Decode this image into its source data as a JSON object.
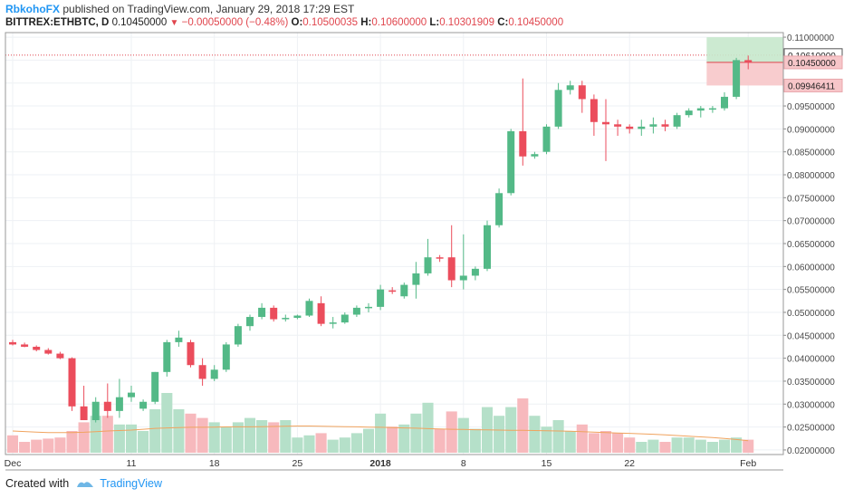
{
  "header": {
    "author": "RbkohoFX",
    "published_text": "published on TradingView.com, January 29, 2018 17:29 EST",
    "symbol": "BITTREX:ETHBTC, D",
    "last": "0.10450000",
    "change": "−0.00050000 (−0.48%)",
    "o_label": "O:",
    "o": "0.10500035",
    "h_label": "H:",
    "h": "0.10600000",
    "l_label": "L:",
    "l": "0.10301909",
    "c_label": "C:",
    "c": "0.10450000"
  },
  "footer": {
    "created_with": "Created with",
    "brand": "TradingView"
  },
  "colors": {
    "up": "#53b987",
    "down": "#eb4d5c",
    "vol_up": "#b5e0c9",
    "vol_down": "#f7b9bd",
    "ma": "#f0a35e",
    "grid": "#eef1f4"
  },
  "chart_data": {
    "type": "candlestick",
    "y_ticks": [
      "0.11000000",
      "0.10500000",
      "0.10000000",
      "0.09500000",
      "0.09000000",
      "0.08500000",
      "0.08000000",
      "0.07500000",
      "0.07000000",
      "0.06500000",
      "0.06000000",
      "0.05500000",
      "0.05000000",
      "0.04500000",
      "0.04000000",
      "0.03500000",
      "0.03000000",
      "0.02500000",
      "0.02000000"
    ],
    "ylim": [
      0.019,
      0.111
    ],
    "x_labels": [
      {
        "label": "Dec",
        "day": 0
      },
      {
        "label": "11",
        "day": 10
      },
      {
        "label": "18",
        "day": 17
      },
      {
        "label": "25",
        "day": 24
      },
      {
        "label": "2018",
        "day": 31
      },
      {
        "label": "8",
        "day": 38
      },
      {
        "label": "15",
        "day": 45
      },
      {
        "label": "22",
        "day": 52
      },
      {
        "label": "Feb",
        "day": 62
      }
    ],
    "price_labels": [
      {
        "text": "0.10610000",
        "value": 0.1061,
        "style": "dark"
      },
      {
        "text": "0.10450000",
        "value": 0.1045,
        "style": "red"
      },
      {
        "text": "0.09946411",
        "value": 0.09946411,
        "style": "red"
      }
    ],
    "position": {
      "entry": 0.1045,
      "target": 0.11,
      "stop": 0.09946411,
      "from_day": 58.5,
      "to_day": 63.5
    },
    "candles": [
      [
        0.0435,
        0.044,
        0.0428,
        0.043
      ],
      [
        0.043,
        0.0434,
        0.0424,
        0.0425
      ],
      [
        0.0425,
        0.0428,
        0.0415,
        0.0418
      ],
      [
        0.0418,
        0.0422,
        0.0408,
        0.041
      ],
      [
        0.041,
        0.0414,
        0.0398,
        0.04
      ],
      [
        0.04,
        0.0402,
        0.0285,
        0.0295
      ],
      [
        0.0295,
        0.034,
        0.0265,
        0.0265
      ],
      [
        0.0265,
        0.0315,
        0.026,
        0.0305
      ],
      [
        0.0305,
        0.0345,
        0.027,
        0.0285
      ],
      [
        0.0285,
        0.0355,
        0.027,
        0.0315
      ],
      [
        0.0315,
        0.034,
        0.0305,
        0.0325
      ],
      [
        0.029,
        0.031,
        0.0285,
        0.0305
      ],
      [
        0.0305,
        0.037,
        0.03,
        0.037
      ],
      [
        0.037,
        0.044,
        0.036,
        0.0435
      ],
      [
        0.0435,
        0.046,
        0.0425,
        0.0445
      ],
      [
        0.0435,
        0.044,
        0.038,
        0.0385
      ],
      [
        0.0385,
        0.04,
        0.034,
        0.0355
      ],
      [
        0.0355,
        0.0385,
        0.035,
        0.0375
      ],
      [
        0.0375,
        0.0435,
        0.037,
        0.043
      ],
      [
        0.043,
        0.0475,
        0.0425,
        0.047
      ],
      [
        0.047,
        0.0495,
        0.046,
        0.049
      ],
      [
        0.049,
        0.052,
        0.0485,
        0.051
      ],
      [
        0.051,
        0.0515,
        0.048,
        0.0485
      ],
      [
        0.0485,
        0.0495,
        0.048,
        0.0488
      ],
      [
        0.0488,
        0.0495,
        0.0485,
        0.0493
      ],
      [
        0.0493,
        0.053,
        0.049,
        0.0525
      ],
      [
        0.052,
        0.0535,
        0.047,
        0.0475
      ],
      [
        0.0475,
        0.049,
        0.0465,
        0.0478
      ],
      [
        0.0478,
        0.05,
        0.0475,
        0.0495
      ],
      [
        0.0495,
        0.0515,
        0.049,
        0.051
      ],
      [
        0.051,
        0.052,
        0.05,
        0.0512
      ],
      [
        0.0512,
        0.056,
        0.0505,
        0.055
      ],
      [
        0.0548,
        0.0555,
        0.054,
        0.0545
      ],
      [
        0.0535,
        0.0565,
        0.053,
        0.056
      ],
      [
        0.056,
        0.061,
        0.053,
        0.0585
      ],
      [
        0.0585,
        0.066,
        0.058,
        0.062
      ],
      [
        0.062,
        0.0625,
        0.061,
        0.0618
      ],
      [
        0.062,
        0.069,
        0.0555,
        0.057
      ],
      [
        0.057,
        0.067,
        0.055,
        0.058
      ],
      [
        0.058,
        0.06,
        0.057,
        0.0595
      ],
      [
        0.0595,
        0.07,
        0.059,
        0.069
      ],
      [
        0.069,
        0.077,
        0.0685,
        0.076
      ],
      [
        0.076,
        0.09,
        0.0755,
        0.0895
      ],
      [
        0.0895,
        0.101,
        0.082,
        0.084
      ],
      [
        0.084,
        0.085,
        0.0835,
        0.0845
      ],
      [
        0.085,
        0.091,
        0.0845,
        0.0905
      ],
      [
        0.0905,
        0.1,
        0.09,
        0.0985
      ],
      [
        0.0985,
        0.1005,
        0.0975,
        0.0995
      ],
      [
        0.0995,
        0.1005,
        0.0935,
        0.0965
      ],
      [
        0.0965,
        0.0975,
        0.0885,
        0.0915
      ],
      [
        0.0915,
        0.0965,
        0.083,
        0.091
      ],
      [
        0.091,
        0.092,
        0.0885,
        0.0905
      ],
      [
        0.0905,
        0.091,
        0.089,
        0.09
      ],
      [
        0.09,
        0.092,
        0.0885,
        0.0905
      ],
      [
        0.0905,
        0.0925,
        0.089,
        0.091
      ],
      [
        0.091,
        0.092,
        0.0895,
        0.0905
      ],
      [
        0.0905,
        0.0935,
        0.09,
        0.093
      ],
      [
        0.093,
        0.0945,
        0.0925,
        0.094
      ],
      [
        0.094,
        0.095,
        0.0925,
        0.0945
      ],
      [
        0.0945,
        0.095,
        0.0935,
        0.0945
      ],
      [
        0.0945,
        0.098,
        0.094,
        0.097
      ],
      [
        0.097,
        0.1055,
        0.0965,
        0.105
      ],
      [
        0.105,
        0.106,
        0.103,
        0.1045
      ]
    ],
    "volume": [
      16,
      10,
      12,
      13,
      14,
      20,
      28,
      34,
      34,
      26,
      26,
      20,
      40,
      55,
      40,
      36,
      32,
      28,
      24,
      28,
      32,
      30,
      28,
      30,
      14,
      16,
      18,
      12,
      14,
      18,
      22,
      36,
      24,
      26,
      36,
      46,
      22,
      38,
      32,
      22,
      42,
      34,
      42,
      50,
      34,
      24,
      30,
      20,
      26,
      18,
      20,
      18,
      14,
      10,
      12,
      10,
      14,
      14,
      12,
      10,
      12,
      14,
      12
    ],
    "ma": [
      20,
      19.5,
      19,
      18.5,
      18.5,
      18.5,
      18.8,
      19.4,
      20,
      20.4,
      20.8,
      21.6,
      22.4,
      22.8,
      23.2,
      23.4,
      23.4,
      23.6,
      23.8,
      23.8,
      23.8,
      24,
      24.2,
      24.4,
      24.6,
      24.6,
      24.4,
      24.2,
      24,
      23.8,
      23.6,
      23.4,
      23.2,
      22.8,
      22.6,
      22.2,
      21.8,
      21.6,
      21.4,
      21.2,
      21,
      20.8,
      20.6,
      20.6,
      20.4,
      20.2,
      20,
      19.8,
      19.4,
      19,
      18.6,
      18.2,
      17.8,
      17.4,
      17,
      16.4,
      15.8,
      15.2,
      14.6,
      14,
      13.2,
      12.2,
      11
    ]
  }
}
